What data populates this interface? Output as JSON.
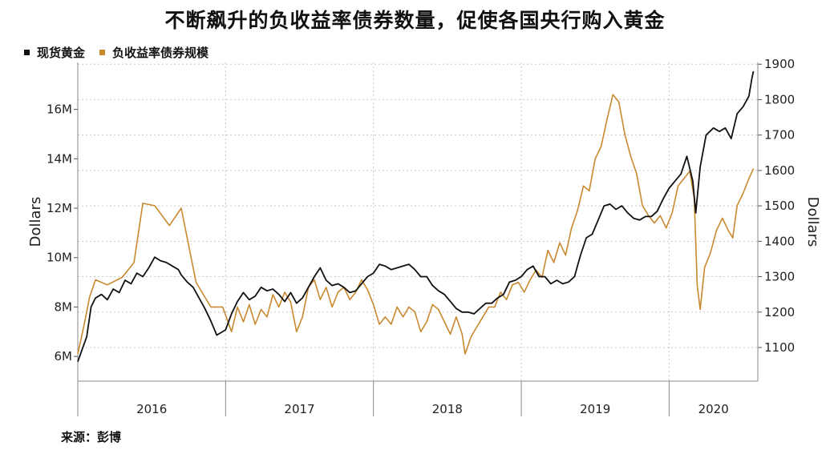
{
  "title": "不断飙升的负收益率债券数量，促使各国央行购入黄金",
  "legend": [
    {
      "label": "现货黄金",
      "color": "#111111"
    },
    {
      "label": "负收益率债券规模",
      "color": "#c9892f"
    }
  ],
  "source": "来源：彭博",
  "chart_data": {
    "type": "line",
    "ylabel_left": "Dollars",
    "ylabel_right": "Dollars",
    "y_left_ticks": [
      "6M",
      "8M",
      "10M",
      "12M",
      "14M",
      "16M"
    ],
    "y_left_tick_values": [
      6,
      8,
      10,
      12,
      14,
      16
    ],
    "y_left_range": [
      5.0,
      17.9
    ],
    "y_right_ticks": [
      "1100",
      "1200",
      "1300",
      "1400",
      "1500",
      "1600",
      "1700",
      "1800",
      "1900"
    ],
    "y_right_tick_values": [
      1100,
      1200,
      1300,
      1400,
      1500,
      1600,
      1700,
      1800,
      1900
    ],
    "y_right_range": [
      1005,
      1905
    ],
    "x_ticks": [
      "2016",
      "2017",
      "2018",
      "2019",
      "2020"
    ],
    "x_range": [
      2016.0,
      2020.6
    ],
    "grid": true,
    "series": [
      {
        "name": "现货黄金",
        "axis": "right",
        "color": "#111111",
        "points": [
          [
            2016.0,
            1060
          ],
          [
            2016.03,
            1095
          ],
          [
            2016.06,
            1130
          ],
          [
            2016.09,
            1215
          ],
          [
            2016.12,
            1240
          ],
          [
            2016.16,
            1250
          ],
          [
            2016.2,
            1235
          ],
          [
            2016.24,
            1265
          ],
          [
            2016.28,
            1255
          ],
          [
            2016.32,
            1290
          ],
          [
            2016.36,
            1280
          ],
          [
            2016.4,
            1310
          ],
          [
            2016.44,
            1300
          ],
          [
            2016.48,
            1325
          ],
          [
            2016.52,
            1355
          ],
          [
            2016.56,
            1345
          ],
          [
            2016.6,
            1340
          ],
          [
            2016.64,
            1330
          ],
          [
            2016.68,
            1320
          ],
          [
            2016.7,
            1305
          ],
          [
            2016.74,
            1285
          ],
          [
            2016.78,
            1270
          ],
          [
            2016.82,
            1240
          ],
          [
            2016.86,
            1210
          ],
          [
            2016.9,
            1175
          ],
          [
            2016.94,
            1135
          ],
          [
            2016.98,
            1145
          ],
          [
            2017.0,
            1150
          ],
          [
            2017.04,
            1195
          ],
          [
            2017.08,
            1230
          ],
          [
            2017.12,
            1255
          ],
          [
            2017.16,
            1235
          ],
          [
            2017.2,
            1245
          ],
          [
            2017.24,
            1270
          ],
          [
            2017.28,
            1260
          ],
          [
            2017.32,
            1265
          ],
          [
            2017.36,
            1250
          ],
          [
            2017.4,
            1230
          ],
          [
            2017.44,
            1255
          ],
          [
            2017.48,
            1225
          ],
          [
            2017.52,
            1240
          ],
          [
            2017.56,
            1270
          ],
          [
            2017.6,
            1300
          ],
          [
            2017.64,
            1325
          ],
          [
            2017.68,
            1290
          ],
          [
            2017.72,
            1275
          ],
          [
            2017.76,
            1280
          ],
          [
            2017.8,
            1270
          ],
          [
            2017.84,
            1255
          ],
          [
            2017.88,
            1260
          ],
          [
            2017.92,
            1280
          ],
          [
            2017.96,
            1300
          ],
          [
            2018.0,
            1310
          ],
          [
            2018.04,
            1335
          ],
          [
            2018.08,
            1330
          ],
          [
            2018.12,
            1320
          ],
          [
            2018.16,
            1325
          ],
          [
            2018.2,
            1330
          ],
          [
            2018.24,
            1335
          ],
          [
            2018.28,
            1320
          ],
          [
            2018.32,
            1300
          ],
          [
            2018.36,
            1300
          ],
          [
            2018.4,
            1275
          ],
          [
            2018.44,
            1260
          ],
          [
            2018.48,
            1250
          ],
          [
            2018.52,
            1230
          ],
          [
            2018.56,
            1210
          ],
          [
            2018.6,
            1200
          ],
          [
            2018.64,
            1200
          ],
          [
            2018.68,
            1195
          ],
          [
            2018.72,
            1210
          ],
          [
            2018.76,
            1225
          ],
          [
            2018.8,
            1225
          ],
          [
            2018.84,
            1240
          ],
          [
            2018.88,
            1250
          ],
          [
            2018.92,
            1285
          ],
          [
            2018.96,
            1290
          ],
          [
            2019.0,
            1300
          ],
          [
            2019.04,
            1320
          ],
          [
            2019.08,
            1330
          ],
          [
            2019.12,
            1300
          ],
          [
            2019.16,
            1300
          ],
          [
            2019.2,
            1280
          ],
          [
            2019.24,
            1290
          ],
          [
            2019.28,
            1280
          ],
          [
            2019.32,
            1285
          ],
          [
            2019.36,
            1300
          ],
          [
            2019.4,
            1360
          ],
          [
            2019.44,
            1410
          ],
          [
            2019.48,
            1420
          ],
          [
            2019.52,
            1460
          ],
          [
            2019.56,
            1500
          ],
          [
            2019.6,
            1505
          ],
          [
            2019.64,
            1490
          ],
          [
            2019.68,
            1500
          ],
          [
            2019.72,
            1480
          ],
          [
            2019.76,
            1465
          ],
          [
            2019.8,
            1460
          ],
          [
            2019.84,
            1470
          ],
          [
            2019.88,
            1470
          ],
          [
            2019.92,
            1485
          ],
          [
            2019.96,
            1520
          ],
          [
            2020.0,
            1550
          ],
          [
            2020.04,
            1570
          ],
          [
            2020.08,
            1590
          ],
          [
            2020.12,
            1640
          ],
          [
            2020.16,
            1570
          ],
          [
            2020.18,
            1480
          ],
          [
            2020.21,
            1610
          ],
          [
            2020.25,
            1700
          ],
          [
            2020.3,
            1720
          ],
          [
            2020.34,
            1710
          ],
          [
            2020.38,
            1720
          ],
          [
            2020.42,
            1690
          ],
          [
            2020.46,
            1760
          ],
          [
            2020.5,
            1780
          ],
          [
            2020.54,
            1810
          ],
          [
            2020.56,
            1860
          ],
          [
            2020.57,
            1880
          ]
        ]
      },
      {
        "name": "负收益率债券规模",
        "axis": "left",
        "color": "#c9892f",
        "points": [
          [
            2016.0,
            6.1
          ],
          [
            2016.04,
            7.2
          ],
          [
            2016.08,
            8.4
          ],
          [
            2016.12,
            9.1
          ],
          [
            2016.2,
            8.9
          ],
          [
            2016.3,
            9.2
          ],
          [
            2016.38,
            9.8
          ],
          [
            2016.44,
            12.2
          ],
          [
            2016.52,
            12.1
          ],
          [
            2016.62,
            11.3
          ],
          [
            2016.7,
            12.0
          ],
          [
            2016.8,
            9.0
          ],
          [
            2016.9,
            8.0
          ],
          [
            2016.98,
            8.0
          ],
          [
            2017.04,
            7.0
          ],
          [
            2017.08,
            8.0
          ],
          [
            2017.12,
            7.4
          ],
          [
            2017.16,
            8.1
          ],
          [
            2017.2,
            7.3
          ],
          [
            2017.24,
            7.9
          ],
          [
            2017.28,
            7.6
          ],
          [
            2017.32,
            8.5
          ],
          [
            2017.36,
            8.0
          ],
          [
            2017.4,
            8.6
          ],
          [
            2017.44,
            8.2
          ],
          [
            2017.48,
            7.0
          ],
          [
            2017.52,
            7.6
          ],
          [
            2017.56,
            8.8
          ],
          [
            2017.6,
            9.1
          ],
          [
            2017.64,
            8.3
          ],
          [
            2017.68,
            8.8
          ],
          [
            2017.72,
            8.0
          ],
          [
            2017.76,
            8.6
          ],
          [
            2017.8,
            8.8
          ],
          [
            2017.84,
            8.3
          ],
          [
            2017.88,
            8.6
          ],
          [
            2017.92,
            9.1
          ],
          [
            2017.96,
            8.7
          ],
          [
            2018.0,
            8.1
          ],
          [
            2018.04,
            7.3
          ],
          [
            2018.08,
            7.6
          ],
          [
            2018.12,
            7.3
          ],
          [
            2018.16,
            8.0
          ],
          [
            2018.2,
            7.6
          ],
          [
            2018.24,
            8.0
          ],
          [
            2018.28,
            7.8
          ],
          [
            2018.32,
            7.0
          ],
          [
            2018.36,
            7.4
          ],
          [
            2018.4,
            8.1
          ],
          [
            2018.44,
            7.9
          ],
          [
            2018.48,
            7.4
          ],
          [
            2018.52,
            6.9
          ],
          [
            2018.56,
            7.6
          ],
          [
            2018.6,
            6.9
          ],
          [
            2018.62,
            6.1
          ],
          [
            2018.66,
            6.8
          ],
          [
            2018.7,
            7.2
          ],
          [
            2018.74,
            7.6
          ],
          [
            2018.78,
            8.0
          ],
          [
            2018.82,
            8.0
          ],
          [
            2018.86,
            8.6
          ],
          [
            2018.9,
            8.3
          ],
          [
            2018.94,
            8.9
          ],
          [
            2018.98,
            9.0
          ],
          [
            2019.02,
            8.6
          ],
          [
            2019.06,
            9.1
          ],
          [
            2019.1,
            9.5
          ],
          [
            2019.14,
            9.2
          ],
          [
            2019.18,
            10.3
          ],
          [
            2019.22,
            9.8
          ],
          [
            2019.26,
            10.6
          ],
          [
            2019.3,
            10.1
          ],
          [
            2019.34,
            11.2
          ],
          [
            2019.38,
            11.9
          ],
          [
            2019.42,
            12.9
          ],
          [
            2019.46,
            12.7
          ],
          [
            2019.5,
            14.0
          ],
          [
            2019.54,
            14.5
          ],
          [
            2019.58,
            15.6
          ],
          [
            2019.62,
            16.6
          ],
          [
            2019.66,
            16.3
          ],
          [
            2019.7,
            15.0
          ],
          [
            2019.74,
            14.1
          ],
          [
            2019.78,
            13.4
          ],
          [
            2019.82,
            12.1
          ],
          [
            2019.86,
            11.7
          ],
          [
            2019.9,
            11.4
          ],
          [
            2019.94,
            11.7
          ],
          [
            2019.98,
            11.2
          ],
          [
            2020.02,
            11.8
          ],
          [
            2020.06,
            12.9
          ],
          [
            2020.1,
            13.2
          ],
          [
            2020.14,
            13.5
          ],
          [
            2020.17,
            12.4
          ],
          [
            2020.19,
            8.9
          ],
          [
            2020.21,
            7.9
          ],
          [
            2020.24,
            9.6
          ],
          [
            2020.28,
            10.2
          ],
          [
            2020.32,
            11.1
          ],
          [
            2020.36,
            11.6
          ],
          [
            2020.4,
            11.1
          ],
          [
            2020.43,
            10.8
          ],
          [
            2020.46,
            12.1
          ],
          [
            2020.5,
            12.6
          ],
          [
            2020.54,
            13.2
          ],
          [
            2020.57,
            13.6
          ]
        ]
      }
    ]
  }
}
